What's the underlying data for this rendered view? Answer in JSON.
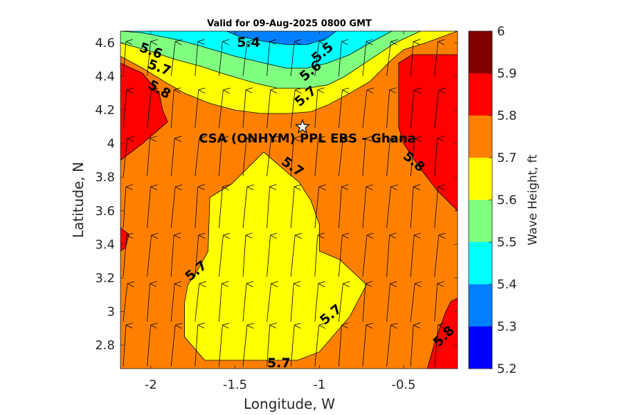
{
  "chart_data": {
    "type": "heatmap",
    "title": "Valid for 09-Aug-2025 0800 GMT",
    "xlabel": "Longitude, W",
    "ylabel": "Latitude, N",
    "xlim": [
      -2.18,
      -0.18
    ],
    "ylim": [
      2.66,
      4.67
    ],
    "x_ticks": [
      "-2",
      "-1.5",
      "-1",
      "-0.5"
    ],
    "x_tick_values": [
      -2,
      -1.5,
      -1,
      -0.5
    ],
    "y_ticks": [
      "2.8",
      "3",
      "3.2",
      "3.4",
      "3.6",
      "3.8",
      "4",
      "4.2",
      "4.4",
      "4.6"
    ],
    "y_tick_values": [
      2.8,
      3.0,
      3.2,
      3.4,
      3.6,
      3.8,
      4.0,
      4.2,
      4.4,
      4.6
    ],
    "colorbar": {
      "label": "Wave Height, ft",
      "ticks": [
        "5.2",
        "5.3",
        "5.4",
        "5.5",
        "5.6",
        "5.7",
        "5.8",
        "5.9",
        "6"
      ],
      "levels": [
        5.2,
        5.3,
        5.4,
        5.5,
        5.6,
        5.7,
        5.8,
        5.9,
        6.0
      ],
      "colors": [
        "#0000ff",
        "#0080ff",
        "#00ffff",
        "#80ff80",
        "#ffff00",
        "#ff8000",
        "#ff0000",
        "#800000"
      ]
    },
    "regions": [
      {
        "level": "5.7-5.8",
        "color": "#ff8000",
        "polygon": [
          [
            -2.18,
            4.67
          ],
          [
            -0.18,
            4.67
          ],
          [
            -0.18,
            2.66
          ],
          [
            -2.18,
            2.66
          ]
        ]
      },
      {
        "level": "5.6-5.7",
        "color": "#ffff00",
        "polygon": [
          [
            -2.18,
            4.67
          ],
          [
            -0.18,
            4.67
          ],
          [
            -0.37,
            4.6
          ],
          [
            -0.5,
            4.56
          ],
          [
            -0.57,
            4.5
          ],
          [
            -0.7,
            4.37
          ],
          [
            -0.82,
            4.3
          ],
          [
            -0.95,
            4.23
          ],
          [
            -1.05,
            4.19
          ],
          [
            -1.18,
            4.18
          ],
          [
            -1.35,
            4.18
          ],
          [
            -1.5,
            4.2
          ],
          [
            -1.65,
            4.24
          ],
          [
            -1.8,
            4.3
          ],
          [
            -1.92,
            4.37
          ],
          [
            -2.05,
            4.45
          ],
          [
            -2.18,
            4.52
          ]
        ]
      },
      {
        "level": "5.5-5.6",
        "color": "#80ff80",
        "polygon": [
          [
            -2.18,
            4.67
          ],
          [
            -0.4,
            4.67
          ],
          [
            -0.55,
            4.6
          ],
          [
            -0.7,
            4.5
          ],
          [
            -0.85,
            4.4
          ],
          [
            -0.95,
            4.35
          ],
          [
            -1.07,
            4.33
          ],
          [
            -1.25,
            4.33
          ],
          [
            -1.38,
            4.36
          ],
          [
            -1.58,
            4.42
          ],
          [
            -1.7,
            4.46
          ],
          [
            -1.85,
            4.5
          ],
          [
            -2.0,
            4.55
          ],
          [
            -2.18,
            4.6
          ]
        ]
      },
      {
        "level": "5.4-5.5",
        "color": "#00ffff",
        "polygon": [
          [
            -2.18,
            4.67
          ],
          [
            -0.57,
            4.67
          ],
          [
            -0.7,
            4.6
          ],
          [
            -0.82,
            4.53
          ],
          [
            -0.95,
            4.48
          ],
          [
            -1.07,
            4.45
          ],
          [
            -1.2,
            4.45
          ],
          [
            -1.33,
            4.48
          ],
          [
            -1.5,
            4.52
          ],
          [
            -1.7,
            4.58
          ],
          [
            -1.85,
            4.62
          ],
          [
            -2.05,
            4.66
          ],
          [
            -2.18,
            4.67
          ]
        ]
      },
      {
        "level": "5.3-5.4",
        "color": "#0080ff",
        "polygon": [
          [
            -1.55,
            4.67
          ],
          [
            -0.9,
            4.67
          ],
          [
            -0.95,
            4.63
          ],
          [
            -1.07,
            4.59
          ],
          [
            -1.2,
            4.59
          ],
          [
            -1.33,
            4.61
          ],
          [
            -1.48,
            4.64
          ]
        ]
      },
      {
        "level": "5.8-5.9",
        "color": "#ff0000",
        "polygon": [
          [
            -2.18,
            4.48
          ],
          [
            -2.05,
            4.42
          ],
          [
            -1.95,
            4.3
          ],
          [
            -1.93,
            4.2
          ],
          [
            -1.9,
            4.13
          ],
          [
            -2.05,
            4.0
          ],
          [
            -2.18,
            3.9
          ]
        ]
      },
      {
        "level": "5.8-5.9",
        "color": "#ff0000",
        "polygon": [
          [
            -0.18,
            4.53
          ],
          [
            -0.45,
            4.53
          ],
          [
            -0.53,
            4.48
          ],
          [
            -0.53,
            4.1
          ],
          [
            -0.5,
            4.0
          ],
          [
            -0.4,
            3.85
          ],
          [
            -0.3,
            3.72
          ],
          [
            -0.18,
            3.6
          ]
        ]
      },
      {
        "level": "5.8-5.9",
        "color": "#ff0000",
        "polygon": [
          [
            -2.18,
            3.5
          ],
          [
            -2.13,
            3.46
          ],
          [
            -2.15,
            3.38
          ],
          [
            -2.18,
            3.36
          ]
        ]
      },
      {
        "level": "5.8-5.9",
        "color": "#ff0000",
        "polygon": [
          [
            -0.18,
            2.66
          ],
          [
            -0.18,
            3.08
          ],
          [
            -0.22,
            3.06
          ],
          [
            -0.25,
            3.0
          ],
          [
            -0.28,
            2.92
          ],
          [
            -0.32,
            2.8
          ],
          [
            -0.36,
            2.66
          ]
        ]
      },
      {
        "level": "5.6-5.7",
        "color": "#ffff00",
        "polygon": [
          [
            -1.33,
            3.95
          ],
          [
            -1.52,
            3.76
          ],
          [
            -1.65,
            3.68
          ],
          [
            -1.66,
            3.36
          ],
          [
            -1.72,
            3.25
          ],
          [
            -1.78,
            3.16
          ],
          [
            -1.8,
            3.05
          ],
          [
            -1.8,
            2.85
          ],
          [
            -1.68,
            2.71
          ],
          [
            -1.13,
            2.71
          ],
          [
            -1.0,
            2.76
          ],
          [
            -0.82,
            2.97
          ],
          [
            -0.72,
            3.16
          ],
          [
            -0.88,
            3.31
          ],
          [
            -1.0,
            3.36
          ],
          [
            -1.0,
            3.52
          ],
          [
            -1.05,
            3.66
          ],
          [
            -1.12,
            3.77
          ],
          [
            -1.18,
            3.82
          ]
        ]
      }
    ],
    "contour_labels": [
      {
        "text": "5.4",
        "x": -1.42,
        "y": 4.6,
        "rot": 0
      },
      {
        "text": "5.6",
        "x": -2.0,
        "y": 4.55,
        "rot": 20
      },
      {
        "text": "5.7",
        "x": -1.95,
        "y": 4.45,
        "rot": 20
      },
      {
        "text": "5.8",
        "x": -1.95,
        "y": 4.32,
        "rot": 30
      },
      {
        "text": "5.5",
        "x": -0.98,
        "y": 4.54,
        "rot": -40
      },
      {
        "text": "5.6",
        "x": -1.05,
        "y": 4.43,
        "rot": -40
      },
      {
        "text": "5.7",
        "x": -1.08,
        "y": 4.28,
        "rot": -40
      },
      {
        "text": "5.7",
        "x": -1.16,
        "y": 3.86,
        "rot": 35
      },
      {
        "text": "5.8",
        "x": -0.44,
        "y": 3.89,
        "rot": 40
      },
      {
        "text": "5.7",
        "x": -1.73,
        "y": 3.24,
        "rot": -40
      },
      {
        "text": "5.7",
        "x": -0.93,
        "y": 2.98,
        "rot": -40
      },
      {
        "text": "5.7",
        "x": -1.24,
        "y": 2.69,
        "rot": 0
      },
      {
        "text": "5.8",
        "x": -0.26,
        "y": 2.85,
        "rot": -45
      }
    ],
    "site": {
      "label": "CSA (ONHYM) PPL EBS  - Ghana",
      "x": -1.1,
      "y": 4.1,
      "marker": "star"
    },
    "grid": false,
    "arrows": "wave direction vectors, approximately northward"
  }
}
